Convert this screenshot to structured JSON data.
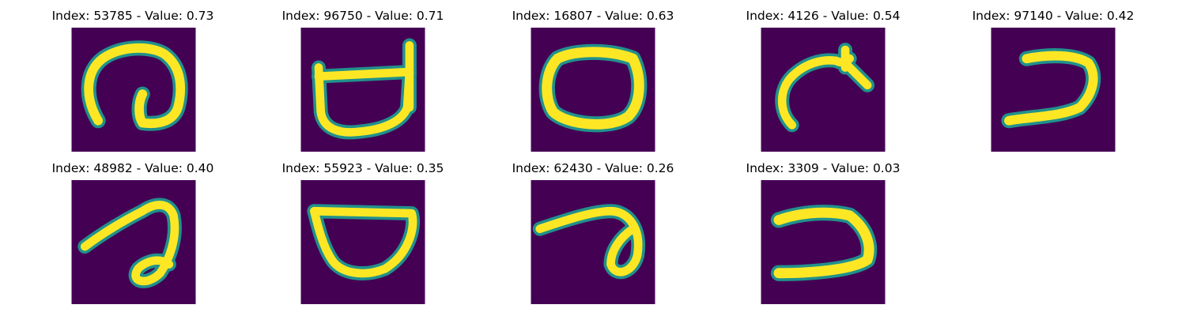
{
  "figure": {
    "background": "#ffffff",
    "colormap": "viridis",
    "image_background": "#440154",
    "stroke_color": "#fde725",
    "edge_color": "#21918c"
  },
  "chart_data": [
    {
      "type": "image",
      "title": "Index: 53785 - Value: 0.73",
      "index": 53785,
      "value": 0.73,
      "glyph": "loop-with-inner-hook"
    },
    {
      "type": "image",
      "title": "Index: 96750 - Value: 0.71",
      "index": 96750,
      "value": 0.71,
      "glyph": "open-box-with-posts"
    },
    {
      "type": "image",
      "title": "Index: 16807 - Value: 0.63",
      "index": 16807,
      "value": 0.63,
      "glyph": "closed-oval"
    },
    {
      "type": "image",
      "title": "Index: 4126 - Value: 0.54",
      "index": 4126,
      "value": 0.54,
      "glyph": "arc-with-spike"
    },
    {
      "type": "image",
      "title": "Index: 97140 - Value: 0.42",
      "index": 97140,
      "value": 0.42,
      "glyph": "reversed-c"
    },
    {
      "type": "image",
      "title": "Index: 48982 - Value: 0.40",
      "index": 48982,
      "value": 0.4,
      "glyph": "hook-with-loop"
    },
    {
      "type": "image",
      "title": "Index: 55923 - Value: 0.35",
      "index": 55923,
      "value": 0.35,
      "glyph": "bowl"
    },
    {
      "type": "image",
      "title": "Index: 62430 - Value: 0.26",
      "index": 62430,
      "value": 0.26,
      "glyph": "line-with-loop"
    },
    {
      "type": "image",
      "title": "Index: 3309 - Value: 0.03",
      "index": 3309,
      "value": 0.03,
      "glyph": "reversed-c-wide"
    }
  ]
}
